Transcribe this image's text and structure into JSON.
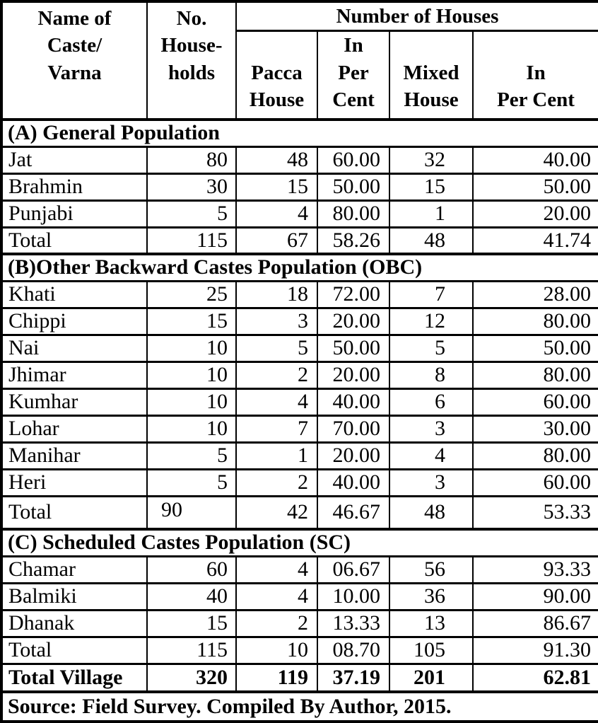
{
  "colors": {
    "text": "#000000",
    "background": "#ffffff",
    "border": "#000000"
  },
  "table": {
    "header": {
      "caste": "Name of\nCaste/\nVarna",
      "households": "No.\nHouse-\nholds",
      "houses_group": "Number of Houses",
      "pacca": "Pacca\nHouse",
      "pacca_percent": "In\nPer\nCent",
      "mixed": "Mixed\nHouse",
      "mixed_percent": "In\nPer Cent"
    },
    "rows": [
      {
        "type": "section",
        "label": "(A) General Population"
      },
      {
        "type": "data",
        "cells": [
          "Jat",
          "80",
          "48",
          "60.00",
          "32",
          "40.00"
        ]
      },
      {
        "type": "data",
        "cells": [
          "Brahmin",
          "30",
          "15",
          "50.00",
          "15",
          "50.00"
        ]
      },
      {
        "type": "data",
        "cells": [
          "Punjabi",
          "5",
          "4",
          "80.00",
          "1",
          "20.00"
        ]
      },
      {
        "type": "data",
        "cells": [
          "Total",
          "115",
          "67",
          "58.26",
          "48",
          "41.74"
        ]
      },
      {
        "type": "section",
        "label": "(B)Other Backward Castes Population (OBC)"
      },
      {
        "type": "data",
        "cells": [
          "Khati",
          "25",
          "18",
          "72.00",
          "7",
          "28.00"
        ]
      },
      {
        "type": "data",
        "cells": [
          "Chippi",
          "15",
          "3",
          "20.00",
          "12",
          "80.00"
        ]
      },
      {
        "type": "data",
        "cells": [
          "Nai",
          "10",
          "5",
          "50.00",
          "5",
          "50.00"
        ]
      },
      {
        "type": "data",
        "cells": [
          "Jhimar",
          "10",
          "2",
          "20.00",
          "8",
          "80.00"
        ]
      },
      {
        "type": "data",
        "cells": [
          "Kumhar",
          "10",
          "4",
          "40.00",
          "6",
          "60.00"
        ]
      },
      {
        "type": "data",
        "cells": [
          "Lohar",
          "10",
          "7",
          "70.00",
          "3",
          "30.00"
        ]
      },
      {
        "type": "data",
        "cells": [
          "Manihar",
          "5",
          "1",
          "20.00",
          "4",
          "80.00"
        ]
      },
      {
        "type": "data",
        "cells": [
          "Heri",
          "5",
          "2",
          "40.00",
          "3",
          "60.00"
        ]
      },
      {
        "type": "data",
        "tall": true,
        "raised_households": true,
        "cells": [
          "Total",
          "90",
          "42",
          "46.67",
          "48",
          "53.33"
        ]
      },
      {
        "type": "section",
        "label": "(C) Scheduled Castes Population (SC)"
      },
      {
        "type": "data",
        "cells": [
          "Chamar",
          "60",
          "4",
          "06.67",
          "56",
          "93.33"
        ]
      },
      {
        "type": "data",
        "cells": [
          "Balmiki",
          "40",
          "4",
          "10.00",
          "36",
          "90.00"
        ]
      },
      {
        "type": "data",
        "cells": [
          "Dhanak",
          "15",
          "2",
          "13.33",
          "13",
          "86.67"
        ]
      },
      {
        "type": "data",
        "cells": [
          "Total",
          "115",
          "10",
          "08.70",
          "105",
          "91.30"
        ]
      },
      {
        "type": "data",
        "bold": true,
        "cells": [
          "Total Village",
          "320",
          "119",
          "37.19",
          "201",
          "62.81"
        ]
      },
      {
        "type": "source",
        "label": "Source: Field Survey. Compiled By Author, 2015."
      }
    ]
  }
}
